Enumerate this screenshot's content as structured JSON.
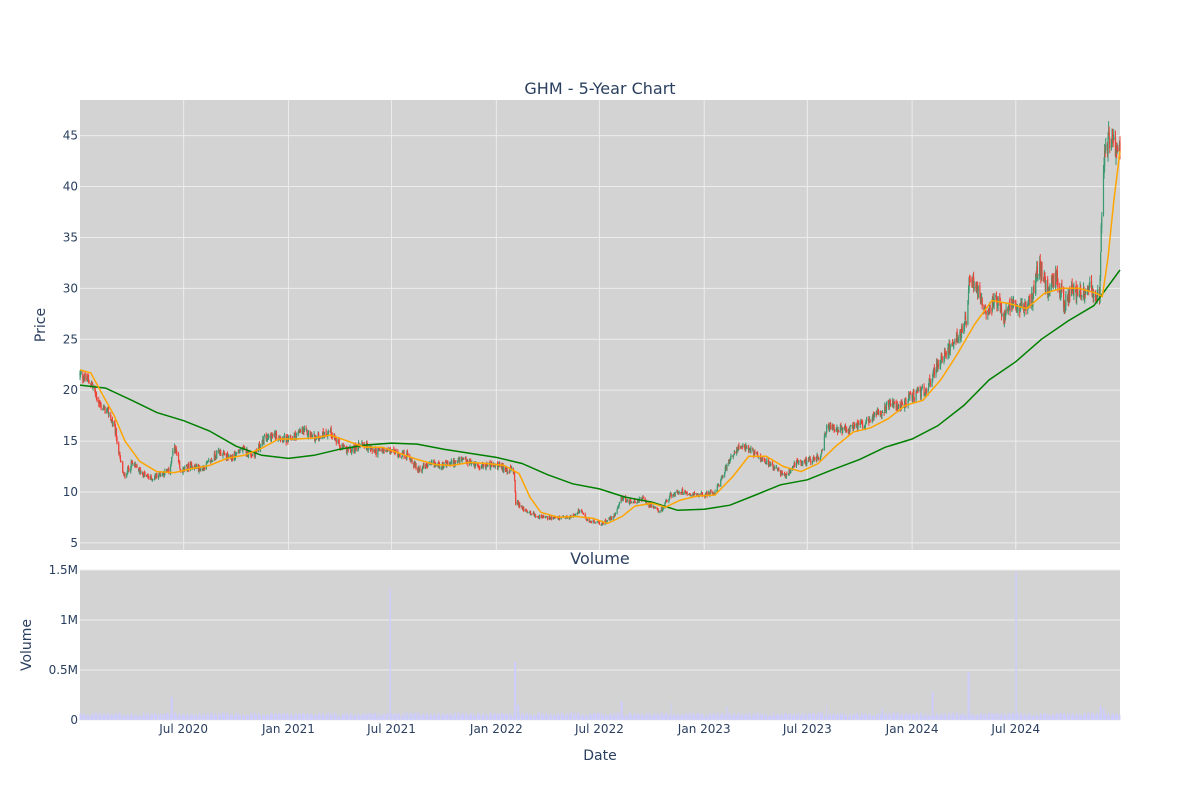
{
  "chart_data": [
    {
      "type": "candlestick",
      "title": "GHM - 5-Year Chart",
      "ylabel": "Price",
      "ylim": [
        4.3,
        48.5
      ],
      "y_ticks": [
        5,
        10,
        15,
        20,
        25,
        30,
        35,
        40,
        45
      ],
      "x_range": [
        "2020-01-01",
        "2024-12-31"
      ],
      "grid": true,
      "colors": {
        "up": "#3d9970",
        "down": "#ef4136",
        "background": "#d3d3d3",
        "grid": "#ececec"
      },
      "close_anchors": [
        [
          "2020-01-01",
          21.5
        ],
        [
          "2020-01-20",
          20.8
        ],
        [
          "2020-02-05",
          18.5
        ],
        [
          "2020-02-20",
          17.8
        ],
        [
          "2020-03-03",
          16.0
        ],
        [
          "2020-03-12",
          13.0
        ],
        [
          "2020-03-18",
          11.5
        ],
        [
          "2020-04-01",
          12.8
        ],
        [
          "2020-04-20",
          11.8
        ],
        [
          "2020-05-05",
          11.3
        ],
        [
          "2020-05-20",
          11.8
        ],
        [
          "2020-06-05",
          12.0
        ],
        [
          "2020-06-15",
          14.5
        ],
        [
          "2020-06-25",
          12.0
        ],
        [
          "2020-07-15",
          12.6
        ],
        [
          "2020-08-01",
          12.2
        ],
        [
          "2020-08-20",
          13.2
        ],
        [
          "2020-09-01",
          14.0
        ],
        [
          "2020-09-20",
          13.2
        ],
        [
          "2020-10-10",
          14.2
        ],
        [
          "2020-11-01",
          13.6
        ],
        [
          "2020-11-20",
          15.2
        ],
        [
          "2020-12-10",
          15.6
        ],
        [
          "2021-01-01",
          15.0
        ],
        [
          "2021-01-25",
          16.0
        ],
        [
          "2021-02-20",
          15.3
        ],
        [
          "2021-03-15",
          16.0
        ],
        [
          "2021-04-01",
          14.5
        ],
        [
          "2021-04-20",
          14.0
        ],
        [
          "2021-05-10",
          14.8
        ],
        [
          "2021-06-01",
          14.0
        ],
        [
          "2021-07-01",
          14.0
        ],
        [
          "2021-08-01",
          13.5
        ],
        [
          "2021-08-15",
          12.2
        ],
        [
          "2021-09-10",
          12.7
        ],
        [
          "2021-10-01",
          12.6
        ],
        [
          "2021-11-01",
          13.1
        ],
        [
          "2021-12-01",
          12.6
        ],
        [
          "2022-01-01",
          12.6
        ],
        [
          "2022-01-20",
          12.2
        ],
        [
          "2022-02-01",
          12.0
        ],
        [
          "2022-02-04",
          9.0
        ],
        [
          "2022-02-20",
          8.2
        ],
        [
          "2022-03-15",
          7.6
        ],
        [
          "2022-04-10",
          7.4
        ],
        [
          "2022-05-10",
          7.5
        ],
        [
          "2022-05-28",
          8.2
        ],
        [
          "2022-06-10",
          7.2
        ],
        [
          "2022-07-05",
          6.9
        ],
        [
          "2022-07-25",
          7.5
        ],
        [
          "2022-08-10",
          9.5
        ],
        [
          "2022-08-25",
          8.9
        ],
        [
          "2022-09-15",
          9.3
        ],
        [
          "2022-10-01",
          8.5
        ],
        [
          "2022-10-15",
          8.0
        ],
        [
          "2022-11-01",
          9.6
        ],
        [
          "2022-11-20",
          10.1
        ],
        [
          "2022-12-15",
          9.8
        ],
        [
          "2023-01-01",
          9.7
        ],
        [
          "2023-01-20",
          10.0
        ],
        [
          "2023-02-05",
          12.0
        ],
        [
          "2023-02-25",
          14.2
        ],
        [
          "2023-03-15",
          14.3
        ],
        [
          "2023-04-10",
          13.5
        ],
        [
          "2023-05-01",
          12.5
        ],
        [
          "2023-05-25",
          11.5
        ],
        [
          "2023-06-10",
          12.8
        ],
        [
          "2023-07-01",
          13.0
        ],
        [
          "2023-07-25",
          13.6
        ],
        [
          "2023-08-05",
          16.5
        ],
        [
          "2023-08-20",
          16.0
        ],
        [
          "2023-09-15",
          16.2
        ],
        [
          "2023-10-15",
          16.8
        ],
        [
          "2023-11-10",
          18.0
        ],
        [
          "2023-11-25",
          19.0
        ],
        [
          "2023-12-10",
          18.2
        ],
        [
          "2024-01-01",
          19.5
        ],
        [
          "2024-01-25",
          20.0
        ],
        [
          "2024-02-15",
          22.5
        ],
        [
          "2024-03-05",
          24.0
        ],
        [
          "2024-03-25",
          25.5
        ],
        [
          "2024-04-05",
          27.0
        ],
        [
          "2024-04-10",
          31.0
        ],
        [
          "2024-04-25",
          30.0
        ],
        [
          "2024-05-10",
          28.0
        ],
        [
          "2024-05-30",
          28.8
        ],
        [
          "2024-06-10",
          27.0
        ],
        [
          "2024-06-25",
          28.5
        ],
        [
          "2024-07-15",
          28.0
        ],
        [
          "2024-07-30",
          29.0
        ],
        [
          "2024-08-10",
          32.5
        ],
        [
          "2024-08-25",
          30.0
        ],
        [
          "2024-09-10",
          31.0
        ],
        [
          "2024-09-25",
          28.5
        ],
        [
          "2024-10-10",
          30.0
        ],
        [
          "2024-10-25",
          29.5
        ],
        [
          "2024-11-10",
          30.0
        ],
        [
          "2024-11-25",
          29.0
        ],
        [
          "2024-12-01",
          42.0
        ],
        [
          "2024-12-10",
          44.5
        ],
        [
          "2024-12-20",
          44.0
        ],
        [
          "2024-12-31",
          44.0
        ]
      ],
      "sma_short": {
        "color": "orange",
        "points": [
          [
            "2020-01-01",
            22.0
          ],
          [
            "2020-01-20",
            21.7
          ],
          [
            "2020-02-10",
            19.5
          ],
          [
            "2020-03-01",
            17.5
          ],
          [
            "2020-03-20",
            15.0
          ],
          [
            "2020-04-15",
            13.0
          ],
          [
            "2020-05-15",
            12.0
          ],
          [
            "2020-06-15",
            11.9
          ],
          [
            "2020-07-15",
            12.3
          ],
          [
            "2020-08-15",
            12.6
          ],
          [
            "2020-09-15",
            13.3
          ],
          [
            "2020-10-15",
            13.6
          ],
          [
            "2020-11-15",
            14.3
          ],
          [
            "2020-12-15",
            15.2
          ],
          [
            "2021-01-15",
            15.2
          ],
          [
            "2021-02-15",
            15.3
          ],
          [
            "2021-03-15",
            15.6
          ],
          [
            "2021-04-15",
            15.0
          ],
          [
            "2021-05-15",
            14.4
          ],
          [
            "2021-06-15",
            14.4
          ],
          [
            "2021-07-15",
            13.8
          ],
          [
            "2021-08-15",
            13.2
          ],
          [
            "2021-09-15",
            12.7
          ],
          [
            "2021-10-15",
            12.6
          ],
          [
            "2021-11-15",
            12.9
          ],
          [
            "2021-12-15",
            12.8
          ],
          [
            "2022-01-15",
            12.6
          ],
          [
            "2022-02-10",
            11.8
          ],
          [
            "2022-03-01",
            9.5
          ],
          [
            "2022-03-20",
            8.0
          ],
          [
            "2022-04-20",
            7.5
          ],
          [
            "2022-05-20",
            7.6
          ],
          [
            "2022-06-20",
            7.4
          ],
          [
            "2022-07-15",
            6.9
          ],
          [
            "2022-08-10",
            7.6
          ],
          [
            "2022-09-01",
            8.6
          ],
          [
            "2022-10-01",
            8.9
          ],
          [
            "2022-10-25",
            8.5
          ],
          [
            "2022-11-20",
            9.2
          ],
          [
            "2022-12-20",
            9.6
          ],
          [
            "2023-01-20",
            9.7
          ],
          [
            "2023-02-20",
            11.5
          ],
          [
            "2023-03-20",
            13.5
          ],
          [
            "2023-04-20",
            13.5
          ],
          [
            "2023-05-20",
            12.5
          ],
          [
            "2023-06-20",
            12.0
          ],
          [
            "2023-07-20",
            12.8
          ],
          [
            "2023-08-20",
            14.5
          ],
          [
            "2023-09-20",
            15.9
          ],
          [
            "2023-10-20",
            16.3
          ],
          [
            "2023-11-20",
            17.2
          ],
          [
            "2023-12-20",
            18.5
          ],
          [
            "2024-01-20",
            19.0
          ],
          [
            "2024-02-20",
            21.0
          ],
          [
            "2024-03-20",
            23.5
          ],
          [
            "2024-04-20",
            26.5
          ],
          [
            "2024-05-20",
            28.8
          ],
          [
            "2024-06-20",
            28.5
          ],
          [
            "2024-07-20",
            28.0
          ],
          [
            "2024-08-20",
            29.5
          ],
          [
            "2024-09-20",
            30.0
          ],
          [
            "2024-10-20",
            30.0
          ],
          [
            "2024-11-20",
            29.5
          ],
          [
            "2024-11-30",
            29.2
          ],
          [
            "2024-12-10",
            33.0
          ],
          [
            "2024-12-20",
            38.5
          ],
          [
            "2024-12-31",
            43.5
          ]
        ]
      },
      "sma_long": {
        "color": "green",
        "points": [
          [
            "2020-01-01",
            20.5
          ],
          [
            "2020-02-15",
            20.2
          ],
          [
            "2020-04-01",
            19.0
          ],
          [
            "2020-05-15",
            17.8
          ],
          [
            "2020-07-01",
            17.0
          ],
          [
            "2020-08-15",
            16.0
          ],
          [
            "2020-10-01",
            14.5
          ],
          [
            "2020-11-15",
            13.6
          ],
          [
            "2021-01-01",
            13.3
          ],
          [
            "2021-02-15",
            13.6
          ],
          [
            "2021-04-01",
            14.2
          ],
          [
            "2021-05-15",
            14.6
          ],
          [
            "2021-07-01",
            14.8
          ],
          [
            "2021-08-15",
            14.7
          ],
          [
            "2021-10-01",
            14.2
          ],
          [
            "2021-11-15",
            13.8
          ],
          [
            "2022-01-01",
            13.4
          ],
          [
            "2022-02-15",
            12.8
          ],
          [
            "2022-04-01",
            11.7
          ],
          [
            "2022-05-15",
            10.8
          ],
          [
            "2022-07-01",
            10.3
          ],
          [
            "2022-08-15",
            9.5
          ],
          [
            "2022-10-01",
            9.0
          ],
          [
            "2022-11-15",
            8.2
          ],
          [
            "2023-01-01",
            8.3
          ],
          [
            "2023-02-15",
            8.7
          ],
          [
            "2023-04-01",
            9.7
          ],
          [
            "2023-05-15",
            10.7
          ],
          [
            "2023-07-01",
            11.2
          ],
          [
            "2023-08-15",
            12.2
          ],
          [
            "2023-10-01",
            13.2
          ],
          [
            "2023-11-15",
            14.4
          ],
          [
            "2024-01-01",
            15.2
          ],
          [
            "2024-02-15",
            16.5
          ],
          [
            "2024-04-01",
            18.5
          ],
          [
            "2024-05-15",
            21.0
          ],
          [
            "2024-07-01",
            22.8
          ],
          [
            "2024-08-15",
            25.0
          ],
          [
            "2024-10-01",
            26.8
          ],
          [
            "2024-11-15",
            28.3
          ],
          [
            "2024-12-31",
            31.8
          ]
        ]
      }
    },
    {
      "type": "bar",
      "title": "Volume",
      "xlabel": "Date",
      "ylabel": "Volume",
      "ylim": [
        0,
        1500000
      ],
      "y_ticks": [
        0,
        500000,
        1000000,
        1500000
      ],
      "y_tick_labels": [
        "0",
        "0.5M",
        "1M",
        "1.5M"
      ],
      "x_tick_labels": [
        [
          "2020-07-01",
          "Jul 2020"
        ],
        [
          "2021-01-01",
          "Jan 2021"
        ],
        [
          "2021-07-01",
          "Jul 2021"
        ],
        [
          "2022-01-01",
          "Jan 2022"
        ],
        [
          "2022-07-01",
          "Jul 2022"
        ],
        [
          "2023-01-01",
          "Jan 2023"
        ],
        [
          "2023-07-01",
          "Jul 2023"
        ],
        [
          "2024-01-01",
          "Jan 2024"
        ],
        [
          "2024-07-01",
          "Jul 2024"
        ]
      ],
      "baseline_volume": 55000,
      "spikes": [
        [
          "2020-06-10",
          230000
        ],
        [
          "2021-06-28",
          1320000
        ],
        [
          "2022-02-03",
          580000
        ],
        [
          "2022-02-08",
          150000
        ],
        [
          "2022-08-09",
          190000
        ],
        [
          "2022-11-05",
          170000
        ],
        [
          "2023-02-10",
          130000
        ],
        [
          "2023-08-05",
          150000
        ],
        [
          "2023-11-10",
          120000
        ],
        [
          "2024-02-06",
          280000
        ],
        [
          "2024-04-09",
          480000
        ],
        [
          "2024-07-01",
          1480000
        ],
        [
          "2024-11-27",
          140000
        ],
        [
          "2024-12-02",
          120000
        ]
      ],
      "color": "#ccccff"
    }
  ]
}
